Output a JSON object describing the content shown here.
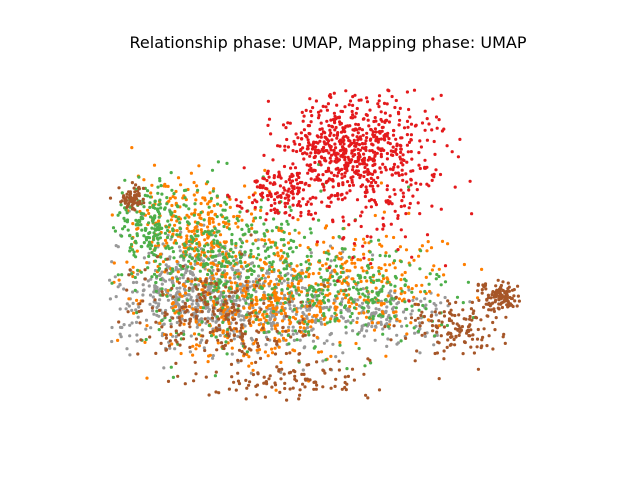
{
  "chart_data": {
    "type": "scatter",
    "title": "Relationship phase: UMAP, Mapping phase: UMAP",
    "axes_visible": false,
    "legend": "none",
    "grid": false,
    "xlim": [
      0,
      10
    ],
    "ylim": [
      0,
      7
    ],
    "series": [
      {
        "color": "#999999",
        "n": 950,
        "clusters": [
          {
            "cx": 2.1,
            "cy": 2.5,
            "sx": 0.9,
            "sy": 0.55,
            "w": 0.55
          },
          {
            "cx": 3.9,
            "cy": 2.2,
            "sx": 1.0,
            "sy": 0.5,
            "w": 0.3
          },
          {
            "cx": 6.2,
            "cy": 2.0,
            "sx": 0.8,
            "sy": 0.3,
            "w": 0.15
          }
        ]
      },
      {
        "color": "#ff7f00",
        "n": 900,
        "clusters": [
          {
            "cx": 2.0,
            "cy": 3.8,
            "sx": 0.9,
            "sy": 0.5,
            "w": 0.3
          },
          {
            "cx": 3.3,
            "cy": 2.3,
            "sx": 1.1,
            "sy": 0.6,
            "w": 0.45
          },
          {
            "cx": 5.7,
            "cy": 2.8,
            "sx": 1.0,
            "sy": 0.5,
            "w": 0.25
          }
        ]
      },
      {
        "color": "#4daf4a",
        "n": 850,
        "clusters": [
          {
            "cx": 1.1,
            "cy": 3.9,
            "sx": 0.4,
            "sy": 0.4,
            "w": 0.2
          },
          {
            "cx": 2.8,
            "cy": 3.1,
            "sx": 1.1,
            "sy": 0.7,
            "w": 0.5
          },
          {
            "cx": 5.5,
            "cy": 2.4,
            "sx": 1.1,
            "sy": 0.5,
            "w": 0.3
          }
        ]
      },
      {
        "color": "#e41a1c",
        "n": 900,
        "clusters": [
          {
            "cx": 5.2,
            "cy": 5.4,
            "sx": 0.6,
            "sy": 0.45,
            "w": 0.4
          },
          {
            "cx": 6.1,
            "cy": 5.2,
            "sx": 0.75,
            "sy": 0.8,
            "w": 0.45
          },
          {
            "cx": 3.9,
            "cy": 4.5,
            "sx": 0.4,
            "sy": 0.25,
            "w": 0.15
          }
        ]
      },
      {
        "color": "#a65628",
        "n": 650,
        "clusters": [
          {
            "cx": 0.7,
            "cy": 4.4,
            "sx": 0.15,
            "sy": 0.12,
            "w": 0.1
          },
          {
            "cx": 2.6,
            "cy": 2.0,
            "sx": 1.0,
            "sy": 0.5,
            "w": 0.35
          },
          {
            "cx": 4.2,
            "cy": 0.7,
            "sx": 0.9,
            "sy": 0.2,
            "w": 0.2
          },
          {
            "cx": 7.8,
            "cy": 1.8,
            "sx": 0.5,
            "sy": 0.3,
            "w": 0.2
          },
          {
            "cx": 8.8,
            "cy": 2.4,
            "sx": 0.2,
            "sy": 0.15,
            "w": 0.15
          }
        ]
      }
    ]
  }
}
